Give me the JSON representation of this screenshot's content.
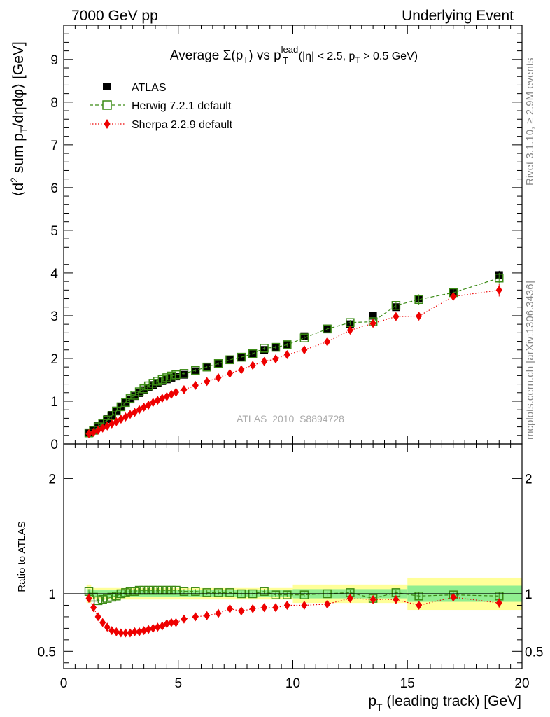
{
  "header": {
    "left": "7000 GeV pp",
    "right": "Underlying Event"
  },
  "side_text": {
    "rivet": "Rivet 3.1.10, ≥ 2.9M events",
    "mcplots": "mcplots.cern.ch [arXiv:1306.3436]"
  },
  "analysis_label": "ATLAS_2010_S8894728",
  "chart_data": [
    {
      "type": "scatter",
      "title": "Average Σ(pT) vs pT lead (|η| < 2.5, pT > 0.5 GeV)",
      "title_parts": {
        "avg": "Average Σ(p",
        "sub_T": "T",
        "vs": ") vs p",
        "sup_lead": "lead",
        "sub_T2": "T",
        "rest1": " (|η| < 2.5, p",
        "sub_T3": "T",
        "rest2": " > 0.5 GeV)"
      },
      "ylabel_parts": {
        "a": "⟨d",
        "sup2": "2",
        "b": " sum p",
        "subT": "T",
        "c": "/dηdφ⟩ [GeV]"
      },
      "xlim": [
        0,
        20
      ],
      "ylim": [
        0,
        9.8
      ],
      "yticks": [
        0,
        1,
        2,
        3,
        4,
        5,
        6,
        7,
        8,
        9
      ],
      "legend_position": "top-left",
      "series": [
        {
          "name": "ATLAS",
          "color": "#000000",
          "marker": "filled-square",
          "x": [
            1.1,
            1.3,
            1.5,
            1.7,
            1.9,
            2.1,
            2.3,
            2.5,
            2.7,
            2.9,
            3.1,
            3.3,
            3.5,
            3.7,
            3.9,
            4.1,
            4.3,
            4.5,
            4.7,
            4.9,
            5.25,
            5.75,
            6.25,
            6.75,
            7.25,
            7.75,
            8.25,
            8.75,
            9.25,
            9.75,
            10.5,
            11.5,
            12.5,
            13.5,
            14.5,
            15.5,
            17.0,
            19.0
          ],
          "y": [
            0.25,
            0.33,
            0.42,
            0.5,
            0.58,
            0.68,
            0.78,
            0.87,
            0.96,
            1.04,
            1.12,
            1.19,
            1.26,
            1.32,
            1.38,
            1.43,
            1.47,
            1.51,
            1.55,
            1.58,
            1.62,
            1.7,
            1.79,
            1.87,
            1.96,
            2.04,
            2.12,
            2.2,
            2.27,
            2.33,
            2.52,
            2.7,
            2.8,
            3.0,
            3.2,
            3.4,
            3.55,
            3.95
          ],
          "yerr": [
            0.02,
            0.02,
            0.02,
            0.02,
            0.02,
            0.02,
            0.02,
            0.02,
            0.02,
            0.02,
            0.02,
            0.02,
            0.02,
            0.02,
            0.02,
            0.02,
            0.02,
            0.02,
            0.02,
            0.02,
            0.03,
            0.03,
            0.03,
            0.03,
            0.03,
            0.03,
            0.03,
            0.04,
            0.04,
            0.04,
            0.04,
            0.05,
            0.05,
            0.06,
            0.07,
            0.08,
            0.09,
            0.1
          ]
        },
        {
          "name": "Herwig 7.2.1 default",
          "color": "#3a8a14",
          "marker": "open-square",
          "line": "dashed",
          "x": [
            1.1,
            1.3,
            1.5,
            1.7,
            1.9,
            2.1,
            2.3,
            2.5,
            2.7,
            2.9,
            3.1,
            3.3,
            3.5,
            3.7,
            3.9,
            4.1,
            4.3,
            4.5,
            4.7,
            4.9,
            5.25,
            5.75,
            6.25,
            6.75,
            7.25,
            7.75,
            8.25,
            8.75,
            9.25,
            9.75,
            10.5,
            11.5,
            12.5,
            13.5,
            14.5,
            15.5,
            17.0,
            19.0
          ],
          "y": [
            0.26,
            0.32,
            0.4,
            0.48,
            0.56,
            0.66,
            0.77,
            0.87,
            0.97,
            1.06,
            1.14,
            1.22,
            1.29,
            1.36,
            1.42,
            1.47,
            1.51,
            1.55,
            1.59,
            1.62,
            1.65,
            1.72,
            1.8,
            1.88,
            1.97,
            2.03,
            2.11,
            2.24,
            2.26,
            2.32,
            2.48,
            2.69,
            2.84,
            2.86,
            3.24,
            3.38,
            3.54,
            3.88
          ],
          "yerr": [
            0.02,
            0.02,
            0.02,
            0.02,
            0.02,
            0.02,
            0.02,
            0.02,
            0.02,
            0.02,
            0.02,
            0.02,
            0.02,
            0.02,
            0.02,
            0.02,
            0.02,
            0.02,
            0.02,
            0.02,
            0.03,
            0.03,
            0.03,
            0.03,
            0.03,
            0.03,
            0.03,
            0.04,
            0.04,
            0.04,
            0.05,
            0.05,
            0.06,
            0.06,
            0.07,
            0.12,
            0.09,
            0.12
          ]
        },
        {
          "name": "Sherpa 2.2.9 default",
          "color": "#ee0000",
          "marker": "filled-diamond",
          "line": "dotted",
          "x": [
            1.1,
            1.3,
            1.5,
            1.7,
            1.9,
            2.1,
            2.3,
            2.5,
            2.7,
            2.9,
            3.1,
            3.3,
            3.5,
            3.7,
            3.9,
            4.1,
            4.3,
            4.5,
            4.7,
            4.9,
            5.25,
            5.75,
            6.25,
            6.75,
            7.25,
            7.75,
            8.25,
            8.75,
            9.25,
            9.75,
            10.5,
            11.5,
            12.5,
            13.5,
            14.5,
            15.5,
            17.0,
            19.0
          ],
          "y": [
            0.24,
            0.27,
            0.32,
            0.37,
            0.42,
            0.47,
            0.52,
            0.58,
            0.63,
            0.69,
            0.74,
            0.8,
            0.86,
            0.91,
            0.97,
            1.02,
            1.07,
            1.11,
            1.16,
            1.21,
            1.27,
            1.37,
            1.46,
            1.55,
            1.65,
            1.74,
            1.84,
            1.93,
            1.99,
            2.09,
            2.2,
            2.39,
            2.66,
            2.82,
            2.98,
            2.99,
            3.45,
            3.6
          ],
          "yerr": [
            0.02,
            0.02,
            0.02,
            0.02,
            0.02,
            0.02,
            0.02,
            0.02,
            0.02,
            0.02,
            0.02,
            0.02,
            0.02,
            0.02,
            0.02,
            0.02,
            0.02,
            0.02,
            0.02,
            0.02,
            0.03,
            0.03,
            0.03,
            0.03,
            0.03,
            0.03,
            0.03,
            0.04,
            0.04,
            0.04,
            0.05,
            0.05,
            0.06,
            0.06,
            0.08,
            0.1,
            0.09,
            0.15
          ]
        }
      ]
    },
    {
      "type": "scatter",
      "ylabel": "Ratio to ATLAS",
      "xlabel_parts": {
        "a": "p",
        "subT": "T",
        "b": " (leading track) [GeV]"
      },
      "xlim": [
        0,
        20
      ],
      "ylim": [
        0.35,
        2.3
      ],
      "yticks": [
        0.5,
        1,
        2
      ],
      "xticks": [
        0,
        5,
        10,
        15,
        20
      ],
      "bands": {
        "stat_color": "#90ee90",
        "total_color": "#ffff99",
        "segments": [
          {
            "x0": 1.0,
            "x1": 1.2,
            "stat": 0.04,
            "total": 0.08
          },
          {
            "x0": 1.2,
            "x1": 10.0,
            "stat": 0.03,
            "total": 0.05
          },
          {
            "x0": 10.0,
            "x1": 15.0,
            "stat": 0.04,
            "total": 0.08
          },
          {
            "x0": 15.0,
            "x1": 20.0,
            "stat": 0.07,
            "total": 0.14
          }
        ]
      },
      "series": [
        {
          "name": "Herwig 7.2.1 default",
          "color": "#3a8a14",
          "marker": "open-square",
          "line": "dashed",
          "x": [
            1.1,
            1.3,
            1.5,
            1.7,
            1.9,
            2.1,
            2.3,
            2.5,
            2.7,
            2.9,
            3.1,
            3.3,
            3.5,
            3.7,
            3.9,
            4.1,
            4.3,
            4.5,
            4.7,
            4.9,
            5.25,
            5.75,
            6.25,
            6.75,
            7.25,
            7.75,
            8.25,
            8.75,
            9.25,
            9.75,
            10.5,
            11.5,
            12.5,
            13.5,
            14.5,
            15.5,
            17.0,
            19.0
          ],
          "y": [
            1.02,
            0.97,
            0.94,
            0.95,
            0.96,
            0.97,
            0.98,
            1.0,
            1.01,
            1.02,
            1.02,
            1.03,
            1.03,
            1.03,
            1.03,
            1.03,
            1.03,
            1.03,
            1.03,
            1.03,
            1.02,
            1.02,
            1.01,
            1.01,
            1.01,
            1.0,
            1.0,
            1.02,
            0.99,
            0.99,
            0.99,
            1.0,
            1.01,
            0.96,
            1.01,
            0.98,
            0.99,
            0.98
          ],
          "yerr": [
            0.02,
            0.02,
            0.02,
            0.02,
            0.02,
            0.02,
            0.02,
            0.02,
            0.02,
            0.02,
            0.02,
            0.02,
            0.02,
            0.02,
            0.02,
            0.02,
            0.02,
            0.02,
            0.02,
            0.02,
            0.02,
            0.02,
            0.02,
            0.02,
            0.02,
            0.02,
            0.02,
            0.02,
            0.02,
            0.02,
            0.02,
            0.02,
            0.02,
            0.02,
            0.02,
            0.03,
            0.03,
            0.03
          ]
        },
        {
          "name": "Sherpa 2.2.9 default",
          "color": "#ee0000",
          "marker": "filled-diamond",
          "line": "dotted",
          "x": [
            1.1,
            1.3,
            1.5,
            1.7,
            1.9,
            2.1,
            2.3,
            2.5,
            2.7,
            2.9,
            3.1,
            3.3,
            3.5,
            3.7,
            3.9,
            4.1,
            4.3,
            4.5,
            4.7,
            4.9,
            5.25,
            5.75,
            6.25,
            6.75,
            7.25,
            7.75,
            8.25,
            8.75,
            9.25,
            9.75,
            10.5,
            11.5,
            12.5,
            13.5,
            14.5,
            15.5,
            17.0,
            19.0
          ],
          "y": [
            0.96,
            0.88,
            0.8,
            0.75,
            0.71,
            0.68,
            0.67,
            0.66,
            0.66,
            0.66,
            0.67,
            0.67,
            0.68,
            0.69,
            0.7,
            0.71,
            0.72,
            0.74,
            0.75,
            0.75,
            0.78,
            0.8,
            0.81,
            0.83,
            0.87,
            0.85,
            0.87,
            0.88,
            0.88,
            0.9,
            0.9,
            0.91,
            0.96,
            0.95,
            0.95,
            0.9,
            0.97,
            0.92
          ],
          "yerr": [
            0.02,
            0.02,
            0.02,
            0.02,
            0.02,
            0.02,
            0.02,
            0.02,
            0.02,
            0.02,
            0.02,
            0.02,
            0.02,
            0.02,
            0.02,
            0.02,
            0.02,
            0.02,
            0.02,
            0.02,
            0.02,
            0.02,
            0.02,
            0.02,
            0.02,
            0.02,
            0.02,
            0.02,
            0.02,
            0.02,
            0.02,
            0.02,
            0.02,
            0.02,
            0.03,
            0.03,
            0.03,
            0.04
          ]
        }
      ]
    }
  ]
}
